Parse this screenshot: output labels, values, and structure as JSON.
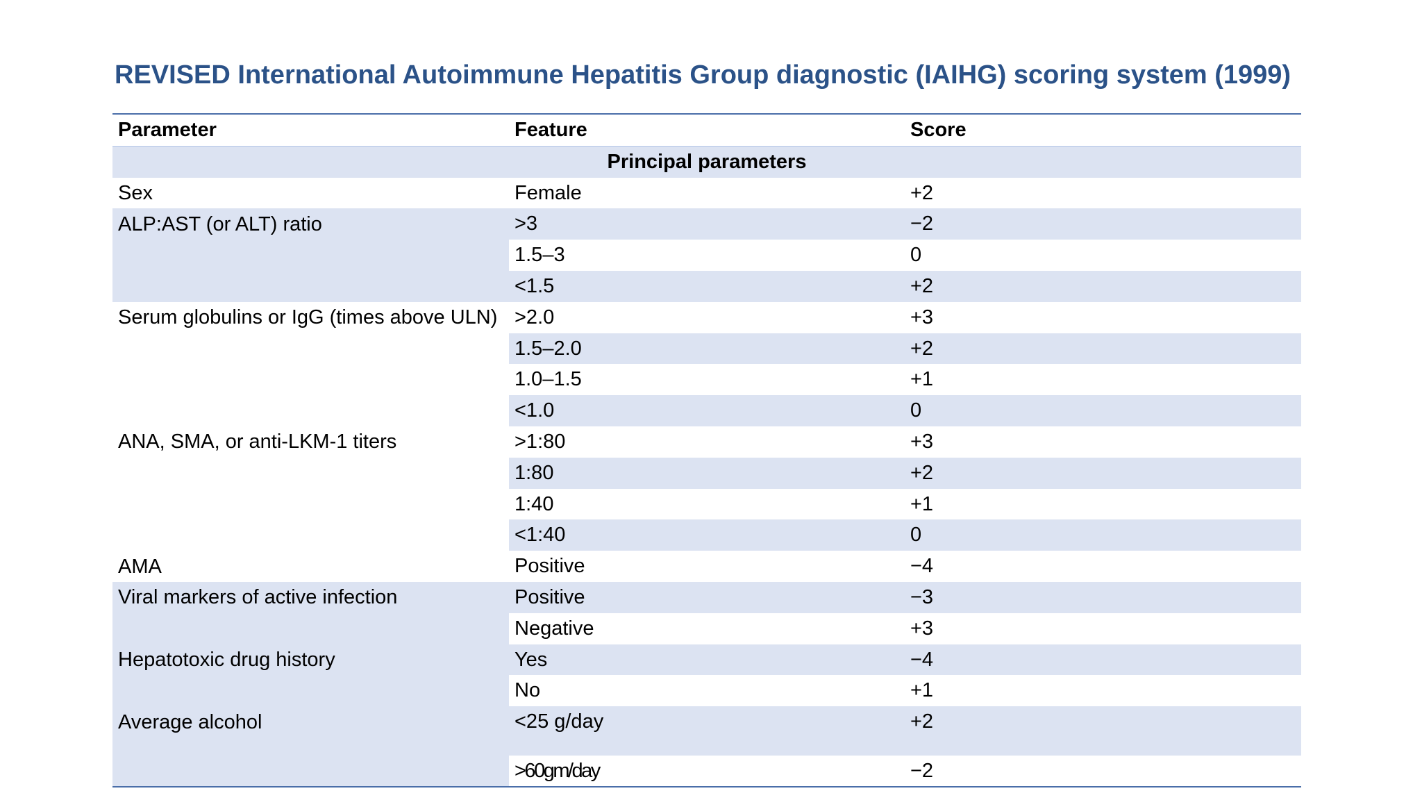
{
  "title": "REVISED International Autoimmune Hepatitis Group diagnostic (IAIHG) scoring system (1999)",
  "colors": {
    "title": "#2b5288",
    "band": "#dce3f2",
    "rule": "#4a6ea9"
  },
  "table": {
    "headers": {
      "parameter": "Parameter",
      "feature": "Feature",
      "score": "Score"
    },
    "section": "Principal parameters",
    "groups": [
      {
        "parameter": "Sex",
        "rows": [
          {
            "feature": "Female",
            "score": "+2"
          }
        ]
      },
      {
        "parameter": "ALP:AST (or ALT) ratio",
        "rows": [
          {
            "feature": ">3",
            "score": "−2"
          },
          {
            "feature": "1.5–3",
            "score": "0"
          },
          {
            "feature": "<1.5",
            "score": "+2"
          }
        ]
      },
      {
        "parameter": "Serum globulins or IgG (times above ULN)",
        "rows": [
          {
            "feature": ">2.0",
            "score": "+3"
          },
          {
            "feature": "1.5–2.0",
            "score": "+2"
          },
          {
            "feature": "1.0–1.5",
            "score": "+1"
          },
          {
            "feature": "<1.0",
            "score": "0"
          }
        ]
      },
      {
        "parameter": "ANA, SMA, or anti-LKM-1 titers",
        "rows": [
          {
            "feature": ">1:80",
            "score": "+3"
          },
          {
            "feature": "1:80",
            "score": "+2"
          },
          {
            "feature": "1:40",
            "score": "+1"
          },
          {
            "feature": "<1:40",
            "score": "0"
          }
        ]
      },
      {
        "parameter": "AMA",
        "rows": [
          {
            "feature": "Positive",
            "score": "−4"
          }
        ]
      },
      {
        "parameter": "Viral markers of active infection",
        "rows": [
          {
            "feature": "Positive",
            "score": "−3"
          },
          {
            "feature": "Negative",
            "score": "+3"
          }
        ]
      },
      {
        "parameter": "Hepatotoxic drug history",
        "rows": [
          {
            "feature": "Yes",
            "score": "−4"
          },
          {
            "feature": "No",
            "score": "+1"
          }
        ]
      },
      {
        "parameter": "Average alcohol",
        "rows": [
          {
            "feature": "<25 g/day",
            "score": "+2"
          },
          {
            "feature": ">60gm/day",
            "score": "−2"
          }
        ]
      }
    ]
  }
}
